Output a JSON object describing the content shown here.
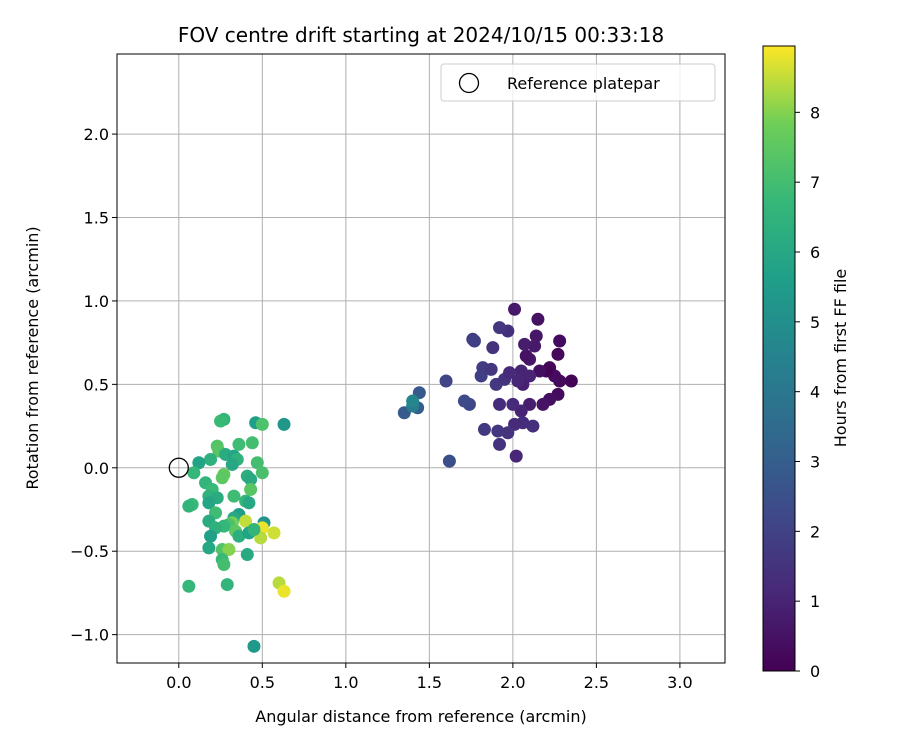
{
  "chart_data": {
    "type": "scatter",
    "title": "FOV centre drift starting at 2024/10/15 00:33:18",
    "xlabel": "Angular distance from reference (arcmin)",
    "ylabel": "Rotation from reference (arcmin)",
    "xlim": [
      -0.37,
      3.27
    ],
    "ylim": [
      -1.17,
      2.48
    ],
    "xticks": [
      0.0,
      0.5,
      1.0,
      1.5,
      2.0,
      2.5,
      3.0
    ],
    "xtick_labels": [
      "0.0",
      "0.5",
      "1.0",
      "1.5",
      "2.0",
      "2.5",
      "3.0"
    ],
    "yticks": [
      -1.0,
      -0.5,
      0.0,
      0.5,
      1.0,
      1.5,
      2.0
    ],
    "ytick_labels": [
      "−1.0",
      "−0.5",
      "0.0",
      "0.5",
      "1.0",
      "1.5",
      "2.0"
    ],
    "grid": true,
    "legend": {
      "position": "top-right",
      "entries": [
        "Reference platepar"
      ]
    },
    "reference_point": {
      "x": 0.0,
      "y": 0.0
    },
    "colorbar": {
      "label": "Hours from first FF file",
      "min": 0,
      "max": 8.95,
      "ticks": [
        0,
        1,
        2,
        3,
        4,
        5,
        6,
        7,
        8
      ],
      "tick_labels": [
        "0",
        "1",
        "2",
        "3",
        "4",
        "5",
        "6",
        "7",
        "8"
      ],
      "colormap": "viridis"
    },
    "points": [
      {
        "x": 2.35,
        "y": 0.52,
        "c": 0.1
      },
      {
        "x": 2.28,
        "y": 0.52,
        "c": 0.2
      },
      {
        "x": 2.22,
        "y": 0.6,
        "c": 0.2
      },
      {
        "x": 2.25,
        "y": 0.55,
        "c": 0.3
      },
      {
        "x": 2.2,
        "y": 0.58,
        "c": 0.1
      },
      {
        "x": 2.27,
        "y": 0.68,
        "c": 0.2
      },
      {
        "x": 2.28,
        "y": 0.76,
        "c": 0.3
      },
      {
        "x": 2.27,
        "y": 0.44,
        "c": 0.3
      },
      {
        "x": 2.22,
        "y": 0.41,
        "c": 0.4
      },
      {
        "x": 2.18,
        "y": 0.38,
        "c": 0.5
      },
      {
        "x": 2.16,
        "y": 0.58,
        "c": 0.4
      },
      {
        "x": 2.15,
        "y": 0.89,
        "c": 0.5
      },
      {
        "x": 2.14,
        "y": 0.79,
        "c": 0.6
      },
      {
        "x": 2.13,
        "y": 0.73,
        "c": 0.7
      },
      {
        "x": 2.1,
        "y": 0.65,
        "c": 0.6
      },
      {
        "x": 2.08,
        "y": 0.67,
        "c": 0.5
      },
      {
        "x": 2.07,
        "y": 0.74,
        "c": 0.8
      },
      {
        "x": 2.01,
        "y": 0.95,
        "c": 0.7
      },
      {
        "x": 2.05,
        "y": 0.58,
        "c": 1.0
      },
      {
        "x": 2.06,
        "y": 0.5,
        "c": 0.9
      },
      {
        "x": 2.03,
        "y": 0.52,
        "c": 1.1
      },
      {
        "x": 2.1,
        "y": 0.38,
        "c": 0.8
      },
      {
        "x": 2.05,
        "y": 0.34,
        "c": 1.0
      },
      {
        "x": 2.0,
        "y": 0.38,
        "c": 1.2
      },
      {
        "x": 2.12,
        "y": 0.25,
        "c": 1.4
      },
      {
        "x": 2.06,
        "y": 0.27,
        "c": 1.3
      },
      {
        "x": 2.01,
        "y": 0.26,
        "c": 1.2
      },
      {
        "x": 1.97,
        "y": 0.21,
        "c": 1.5
      },
      {
        "x": 1.91,
        "y": 0.22,
        "c": 1.6
      },
      {
        "x": 1.83,
        "y": 0.23,
        "c": 1.7
      },
      {
        "x": 1.92,
        "y": 0.14,
        "c": 1.5
      },
      {
        "x": 2.02,
        "y": 0.07,
        "c": 1.1
      },
      {
        "x": 1.92,
        "y": 0.38,
        "c": 1.3
      },
      {
        "x": 1.97,
        "y": 0.82,
        "c": 1.4
      },
      {
        "x": 1.92,
        "y": 0.84,
        "c": 1.6
      },
      {
        "x": 1.76,
        "y": 0.77,
        "c": 1.8
      },
      {
        "x": 1.77,
        "y": 0.76,
        "c": 1.9
      },
      {
        "x": 1.88,
        "y": 0.72,
        "c": 1.5
      },
      {
        "x": 1.82,
        "y": 0.6,
        "c": 1.8
      },
      {
        "x": 1.87,
        "y": 0.59,
        "c": 1.6
      },
      {
        "x": 1.81,
        "y": 0.55,
        "c": 1.9
      },
      {
        "x": 1.9,
        "y": 0.5,
        "c": 1.7
      },
      {
        "x": 1.95,
        "y": 0.53,
        "c": 1.5
      },
      {
        "x": 1.98,
        "y": 0.57,
        "c": 1.2
      },
      {
        "x": 2.1,
        "y": 0.55,
        "c": 1.0
      },
      {
        "x": 1.6,
        "y": 0.52,
        "c": 2.1
      },
      {
        "x": 1.74,
        "y": 0.38,
        "c": 2.2
      },
      {
        "x": 1.71,
        "y": 0.4,
        "c": 2.3
      },
      {
        "x": 1.62,
        "y": 0.04,
        "c": 2.4
      },
      {
        "x": 1.44,
        "y": 0.45,
        "c": 2.8
      },
      {
        "x": 1.43,
        "y": 0.36,
        "c": 3.0
      },
      {
        "x": 1.35,
        "y": 0.33,
        "c": 2.9
      },
      {
        "x": 1.4,
        "y": 0.37,
        "c": 4.2
      },
      {
        "x": 1.4,
        "y": 0.4,
        "c": 4.6
      },
      {
        "x": 0.63,
        "y": 0.26,
        "c": 5.3
      },
      {
        "x": 0.46,
        "y": 0.27,
        "c": 5.6
      },
      {
        "x": 0.5,
        "y": 0.26,
        "c": 7.2
      },
      {
        "x": 0.27,
        "y": 0.29,
        "c": 6.6
      },
      {
        "x": 0.25,
        "y": 0.28,
        "c": 6.8
      },
      {
        "x": 0.44,
        "y": 0.15,
        "c": 7.0
      },
      {
        "x": 0.36,
        "y": 0.14,
        "c": 6.9
      },
      {
        "x": 0.23,
        "y": 0.13,
        "c": 7.3
      },
      {
        "x": 0.24,
        "y": 0.1,
        "c": 7.4
      },
      {
        "x": 0.28,
        "y": 0.08,
        "c": 6.2
      },
      {
        "x": 0.33,
        "y": 0.07,
        "c": 5.9
      },
      {
        "x": 0.35,
        "y": 0.05,
        "c": 6.5
      },
      {
        "x": 0.32,
        "y": 0.02,
        "c": 6.0
      },
      {
        "x": 0.19,
        "y": 0.05,
        "c": 6.4
      },
      {
        "x": 0.12,
        "y": 0.03,
        "c": 5.8
      },
      {
        "x": 0.09,
        "y": -0.03,
        "c": 6.7
      },
      {
        "x": 0.47,
        "y": 0.03,
        "c": 7.0
      },
      {
        "x": 0.5,
        "y": -0.03,
        "c": 7.1
      },
      {
        "x": 0.41,
        "y": -0.05,
        "c": 6.3
      },
      {
        "x": 0.43,
        "y": -0.07,
        "c": 6.1
      },
      {
        "x": 0.27,
        "y": -0.04,
        "c": 7.6
      },
      {
        "x": 0.26,
        "y": -0.06,
        "c": 7.5
      },
      {
        "x": 0.16,
        "y": -0.09,
        "c": 6.6
      },
      {
        "x": 0.43,
        "y": -0.13,
        "c": 7.4
      },
      {
        "x": 0.2,
        "y": -0.13,
        "c": 6.8
      },
      {
        "x": 0.18,
        "y": -0.17,
        "c": 6.5
      },
      {
        "x": 0.23,
        "y": -0.18,
        "c": 6.2
      },
      {
        "x": 0.33,
        "y": -0.17,
        "c": 6.9
      },
      {
        "x": 0.4,
        "y": -0.2,
        "c": 6.7
      },
      {
        "x": 0.42,
        "y": -0.21,
        "c": 6.0
      },
      {
        "x": 0.18,
        "y": -0.21,
        "c": 5.9
      },
      {
        "x": 0.08,
        "y": -0.22,
        "c": 6.8
      },
      {
        "x": 0.06,
        "y": -0.23,
        "c": 6.6
      },
      {
        "x": 0.22,
        "y": -0.27,
        "c": 6.9
      },
      {
        "x": 0.36,
        "y": -0.28,
        "c": 5.5
      },
      {
        "x": 0.33,
        "y": -0.3,
        "c": 6.1
      },
      {
        "x": 0.51,
        "y": -0.33,
        "c": 5.2
      },
      {
        "x": 0.4,
        "y": -0.32,
        "c": 8.5
      },
      {
        "x": 0.5,
        "y": -0.36,
        "c": 8.8
      },
      {
        "x": 0.57,
        "y": -0.39,
        "c": 8.6
      },
      {
        "x": 0.49,
        "y": -0.42,
        "c": 8.4
      },
      {
        "x": 0.32,
        "y": -0.33,
        "c": 7.9
      },
      {
        "x": 0.3,
        "y": -0.34,
        "c": 7.2
      },
      {
        "x": 0.27,
        "y": -0.35,
        "c": 6.7
      },
      {
        "x": 0.18,
        "y": -0.32,
        "c": 6.2
      },
      {
        "x": 0.22,
        "y": -0.36,
        "c": 6.4
      },
      {
        "x": 0.34,
        "y": -0.38,
        "c": 7.5
      },
      {
        "x": 0.36,
        "y": -0.41,
        "c": 6.3
      },
      {
        "x": 0.42,
        "y": -0.39,
        "c": 5.8
      },
      {
        "x": 0.45,
        "y": -0.37,
        "c": 6.6
      },
      {
        "x": 0.19,
        "y": -0.41,
        "c": 5.7
      },
      {
        "x": 0.18,
        "y": -0.48,
        "c": 6.0
      },
      {
        "x": 0.26,
        "y": -0.49,
        "c": 7.3
      },
      {
        "x": 0.3,
        "y": -0.49,
        "c": 8.0
      },
      {
        "x": 0.41,
        "y": -0.52,
        "c": 6.1
      },
      {
        "x": 0.26,
        "y": -0.55,
        "c": 6.8
      },
      {
        "x": 0.27,
        "y": -0.58,
        "c": 7.0
      },
      {
        "x": 0.06,
        "y": -0.71,
        "c": 6.7
      },
      {
        "x": 0.29,
        "y": -0.7,
        "c": 6.6
      },
      {
        "x": 0.6,
        "y": -0.69,
        "c": 8.4
      },
      {
        "x": 0.63,
        "y": -0.74,
        "c": 8.8
      },
      {
        "x": 0.45,
        "y": -1.07,
        "c": 5.4
      }
    ]
  }
}
